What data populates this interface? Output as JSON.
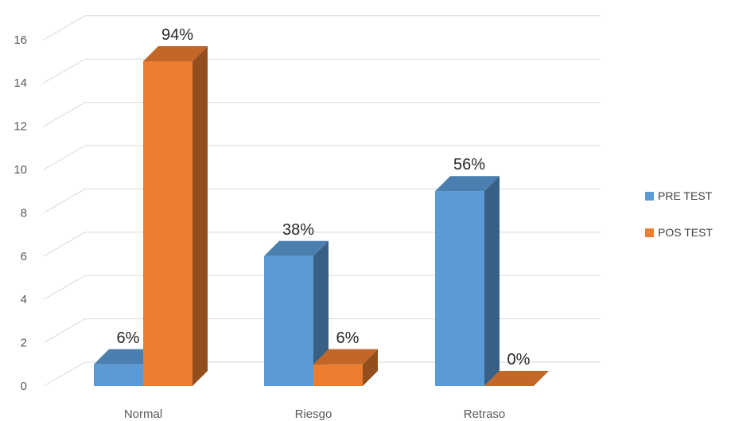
{
  "chart_data": {
    "type": "bar",
    "categories": [
      "Normal",
      "Riesgo",
      "Retraso"
    ],
    "series": [
      {
        "name": "PRE TEST",
        "values": [
          1,
          6,
          9
        ],
        "data_labels": [
          "6%",
          "38%",
          "56%"
        ],
        "color": "#5B9BD5"
      },
      {
        "name": "POS TEST",
        "values": [
          15,
          1,
          0
        ],
        "data_labels": [
          "94%",
          "6%",
          "0%"
        ],
        "color": "#ED7D31"
      }
    ],
    "ylim": [
      0,
      16
    ],
    "yticks": [
      0,
      2,
      4,
      6,
      8,
      10,
      12,
      14,
      16
    ],
    "grid": true,
    "legend_position": "right",
    "style": "3d-column"
  }
}
